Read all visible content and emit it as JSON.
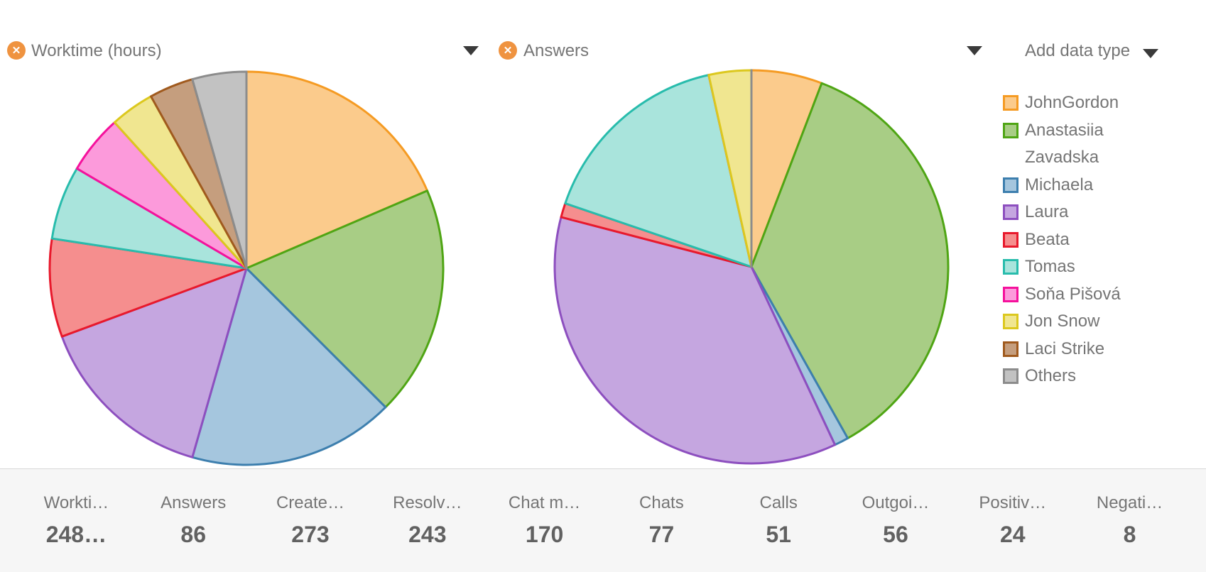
{
  "icons": {
    "remove_glyph": "✕",
    "remove_chart": "circle-x-icon",
    "dropdown": "caret-down-icon"
  },
  "palette": {
    "strokes": [
      "#F59B23",
      "#4FA514",
      "#3D7FAE",
      "#8D4FBF",
      "#E8192C",
      "#28BCAC",
      "#F5119C",
      "#DCC81E",
      "#A05A1E",
      "#8C8C8C"
    ],
    "fills": [
      "#FBCB8C",
      "#A8CD85",
      "#A5C6DE",
      "#C5A6E0",
      "#F58E8E",
      "#A9E4DC",
      "#FC9ADB",
      "#F0E690",
      "#C59E7E",
      "#C2C2C2"
    ]
  },
  "charts": [
    {
      "title": "Worktime (hours)"
    },
    {
      "title": "Answers"
    }
  ],
  "controls": {
    "add_data_type_label": "Add data type"
  },
  "chart_data": [
    {
      "type": "pie",
      "title": "Worktime (hours)",
      "categories": [
        "JohnGordon",
        "Anastasiia Zavadska",
        "Michaela",
        "Laura",
        "Beata",
        "Tomas",
        "Soňa Pišová",
        "Jon Snow",
        "Laci Strike",
        "Others"
      ],
      "values": [
        46,
        47,
        42,
        37,
        20,
        15,
        12,
        9,
        9,
        11
      ],
      "total_label": "248…",
      "start_angle_deg": 0,
      "direction": "clockwise",
      "legend_position": "right"
    },
    {
      "type": "pie",
      "title": "Answers",
      "categories": [
        "JohnGordon",
        "Anastasiia Zavadska",
        "Michaela",
        "Laura",
        "Beata",
        "Tomas",
        "Soňa Pišová",
        "Jon Snow",
        "Laci Strike",
        "Others"
      ],
      "values": [
        5,
        31,
        1,
        31,
        1,
        14,
        0,
        3,
        0,
        0
      ],
      "total_label": "86",
      "start_angle_deg": 0,
      "direction": "clockwise",
      "legend_position": "right"
    }
  ],
  "stats": [
    {
      "label": "Workti…",
      "value": "248…"
    },
    {
      "label": "Answers",
      "value": "86"
    },
    {
      "label": "Create…",
      "value": "273"
    },
    {
      "label": "Resolv…",
      "value": "243"
    },
    {
      "label": "Chat m…",
      "value": "170"
    },
    {
      "label": "Chats",
      "value": "77"
    },
    {
      "label": "Calls",
      "value": "51"
    },
    {
      "label": "Outgoi…",
      "value": "56"
    },
    {
      "label": "Positiv…",
      "value": "24"
    },
    {
      "label": "Negati…",
      "value": "8"
    }
  ]
}
